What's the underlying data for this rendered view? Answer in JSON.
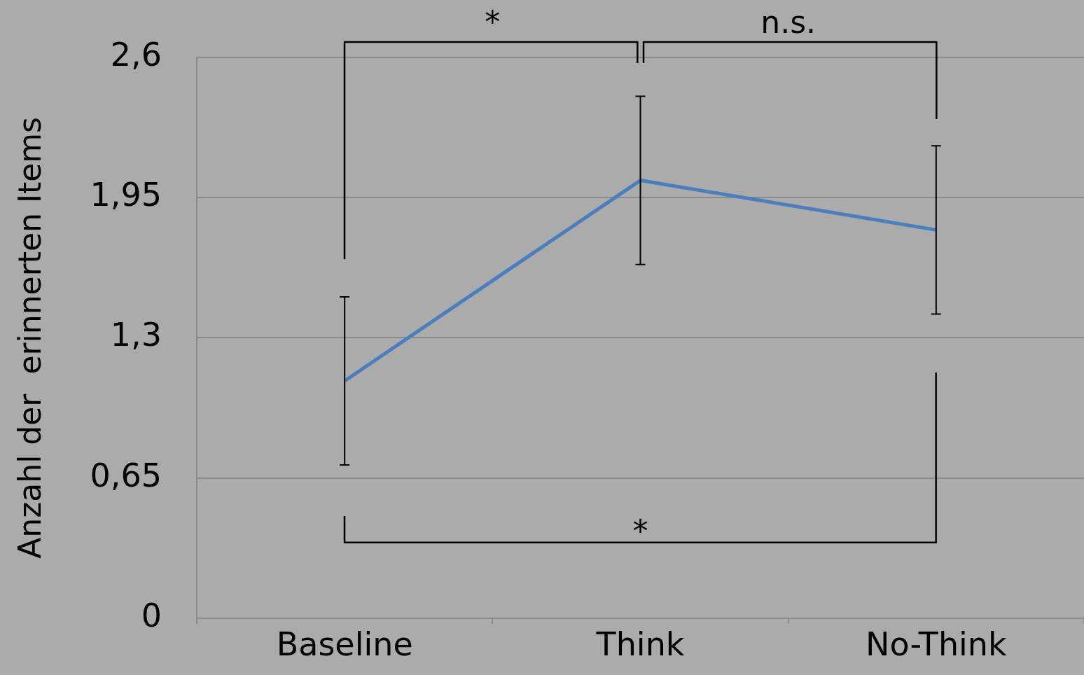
{
  "chart_data": {
    "type": "line",
    "ylabel": "Anzahl der  erinnerten Items",
    "categories": [
      "Baseline",
      "Think",
      "No-Think"
    ],
    "series": [
      {
        "color": "#4a7ebf",
        "values": [
          1.1,
          2.03,
          1.8
        ],
        "errors": [
          0.39,
          0.39,
          0.39
        ]
      }
    ],
    "ylim": [
      0,
      2.6
    ],
    "yticks": [
      0,
      {
        "value": 0.65,
        "label": "0,65"
      },
      {
        "value": 1.3,
        "label": "1,3"
      },
      {
        "value": 1.95,
        "label": "1,95"
      },
      {
        "value": 2.6,
        "label": "2,6"
      }
    ],
    "grid": "y",
    "legend": false,
    "marker": "none",
    "line_style": "solid",
    "annotations": [
      "*",
      "n.s.",
      "*"
    ]
  }
}
